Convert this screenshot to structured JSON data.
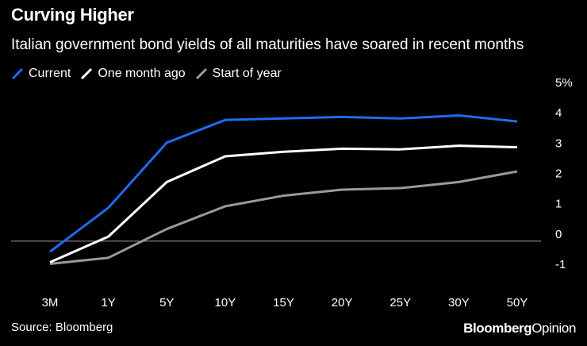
{
  "chart_data": {
    "type": "line",
    "title": "Curving Higher",
    "subtitle": "Italian government bond yields of all maturities have soared in recent months",
    "categories": [
      "3M",
      "1Y",
      "5Y",
      "10Y",
      "15Y",
      "20Y",
      "25Y",
      "30Y",
      "50Y"
    ],
    "series": [
      {
        "name": "Current",
        "color": "#1f6bf0",
        "values": [
          -0.35,
          1.1,
          3.25,
          4.0,
          4.05,
          4.1,
          4.05,
          4.15,
          3.95
        ]
      },
      {
        "name": "One month ago",
        "color": "#ffffff",
        "values": [
          -0.7,
          0.15,
          1.95,
          2.8,
          2.95,
          3.05,
          3.03,
          3.15,
          3.1
        ]
      },
      {
        "name": "Start of year",
        "color": "#9a9a9a",
        "values": [
          -0.75,
          -0.55,
          0.4,
          1.15,
          1.5,
          1.7,
          1.75,
          1.95,
          2.3
        ]
      }
    ],
    "ylim": [
      -1,
      5
    ],
    "yticks": [
      "-1",
      "0",
      "1",
      "2",
      "3",
      "4",
      "5%"
    ],
    "ytick_values": [
      -1,
      0,
      1,
      2,
      3,
      4,
      5
    ],
    "zero_line": 0,
    "xlabel": "",
    "ylabel": ""
  },
  "source": "Source: Bloomberg",
  "brand": {
    "bold": "Bloomberg",
    "regular": "Opinion"
  }
}
